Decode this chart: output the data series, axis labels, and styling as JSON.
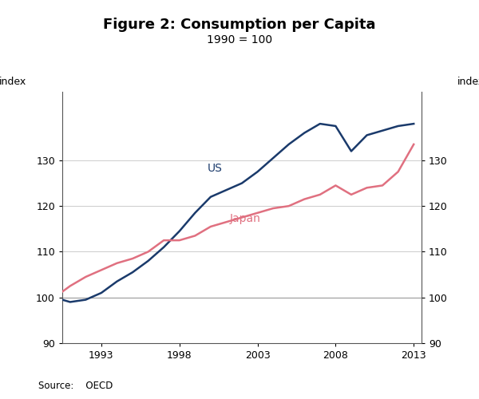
{
  "title": "Figure 2: Consumption per Capita",
  "subtitle": "1990 = 100",
  "ylabel_left": "index",
  "ylabel_right": "index",
  "source": "Source:    OECD",
  "ylim": [
    90,
    145
  ],
  "yticks": [
    90,
    100,
    110,
    120,
    130
  ],
  "title_fontsize": 13,
  "subtitle_fontsize": 10,
  "us_color": "#1a3a6b",
  "japan_color": "#e07080",
  "us_label": "US",
  "japan_label": "Japan",
  "us_data": {
    "years": [
      1990,
      1991,
      1992,
      1993,
      1994,
      1995,
      1996,
      1997,
      1998,
      1999,
      2000,
      2001,
      2002,
      2003,
      2004,
      2005,
      2006,
      2007,
      2008,
      2009,
      2010,
      2011,
      2012,
      2013
    ],
    "values": [
      100,
      99.0,
      99.5,
      101.0,
      103.5,
      105.5,
      108.0,
      111.0,
      114.5,
      118.5,
      122.0,
      123.5,
      125.0,
      127.5,
      130.5,
      133.5,
      136.0,
      138.0,
      137.5,
      132.0,
      135.5,
      136.5,
      137.5,
      138.0
    ]
  },
  "japan_data": {
    "years": [
      1990,
      1991,
      1992,
      1993,
      1994,
      1995,
      1996,
      1997,
      1998,
      1999,
      2000,
      2001,
      2002,
      2003,
      2004,
      2005,
      2006,
      2007,
      2008,
      2009,
      2010,
      2011,
      2012,
      2013
    ],
    "values": [
      100,
      102.5,
      104.5,
      106.0,
      107.5,
      108.5,
      110.0,
      112.5,
      112.5,
      113.5,
      115.5,
      116.5,
      117.5,
      118.5,
      119.5,
      120.0,
      121.5,
      122.5,
      124.5,
      122.5,
      124.0,
      124.5,
      127.5,
      133.5
    ]
  },
  "background_color": "#ffffff",
  "grid_color": "#cccccc",
  "xticks": [
    1993,
    1998,
    2003,
    2008,
    2013
  ],
  "xmin": 1990.5,
  "xmax": 2013.5
}
